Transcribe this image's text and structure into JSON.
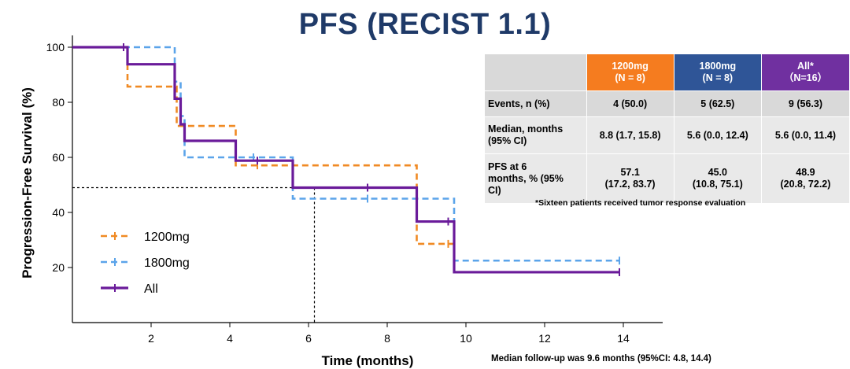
{
  "title": "PFS (RECIST 1.1)",
  "chart_data": {
    "type": "line",
    "subtype": "kaplan-meier step",
    "xlabel": "Time (months)",
    "ylabel": "Progression-Free Survival (%)",
    "xlim": [
      0,
      15
    ],
    "ylim": [
      0,
      105
    ],
    "x_ticks": [
      2,
      4,
      6,
      8,
      10,
      12,
      14
    ],
    "y_ticks": [
      20,
      40,
      60,
      80,
      100
    ],
    "median_reference": {
      "x": 6.15,
      "y": 49
    },
    "series": [
      {
        "name": "1200mg",
        "color": "#f08a24",
        "dash": true,
        "steps": [
          [
            0,
            100
          ],
          [
            1.4,
            85.7
          ],
          [
            2.65,
            71.4
          ],
          [
            4.15,
            57.1
          ],
          [
            8.75,
            28.6
          ],
          [
            9.7,
            28.6
          ]
        ],
        "censor": [
          [
            1.3,
            100
          ],
          [
            4.7,
            57.1
          ],
          [
            9.55,
            28.6
          ]
        ]
      },
      {
        "name": "1800mg",
        "color": "#5ba4ea",
        "dash": true,
        "steps": [
          [
            0,
            100
          ],
          [
            2.6,
            87.5
          ],
          [
            2.75,
            75
          ],
          [
            2.85,
            60
          ],
          [
            5.6,
            45
          ],
          [
            9.7,
            22.5
          ],
          [
            13.9,
            22.5
          ]
        ],
        "censor": [
          [
            4.6,
            60
          ],
          [
            7.5,
            45
          ],
          [
            13.9,
            22.5
          ]
        ]
      },
      {
        "name": "All",
        "color": "#6a1b9a",
        "dash": false,
        "steps": [
          [
            0,
            100
          ],
          [
            1.4,
            93.8
          ],
          [
            2.6,
            81.3
          ],
          [
            2.75,
            72
          ],
          [
            2.85,
            66
          ],
          [
            4.15,
            58.8
          ],
          [
            5.6,
            49
          ],
          [
            8.75,
            36.7
          ],
          [
            9.7,
            18.3
          ],
          [
            13.9,
            18.3
          ]
        ],
        "censor": [
          [
            1.3,
            100
          ],
          [
            4.7,
            58.8
          ],
          [
            7.5,
            49
          ],
          [
            9.55,
            36.7
          ],
          [
            13.9,
            18.3
          ]
        ]
      }
    ],
    "legend_position": "lower-left"
  },
  "table": {
    "headers": [
      "",
      "1200mg\n(N = 8)",
      "1800mg\n(N = 8)",
      "All*\n（N=16）"
    ],
    "header_colors": [
      "#d9d9d9",
      "#f57c1f",
      "#2f5597",
      "#7030a0"
    ],
    "rows": [
      [
        "Events, n (%)",
        "4 (50.0)",
        "5 (62.5)",
        "9 (56.3)"
      ],
      [
        "Median, months\n(95% CI)",
        "8.8 (1.7, 15.8)",
        "5.6 (0.0, 12.4)",
        "5.6 (0.0, 11.4)"
      ],
      [
        "PFS at 6\nmonths, % (95%\nCI)",
        "57.1\n(17.2, 83.7)",
        "45.0\n(10.8, 75.1)",
        "48.9\n(20.8, 72.2)"
      ]
    ]
  },
  "footnote": "*Sixteen patients received tumor response evaluation",
  "followup": "Median follow-up was 9.6 months (95%CI: 4.8, 14.4)"
}
